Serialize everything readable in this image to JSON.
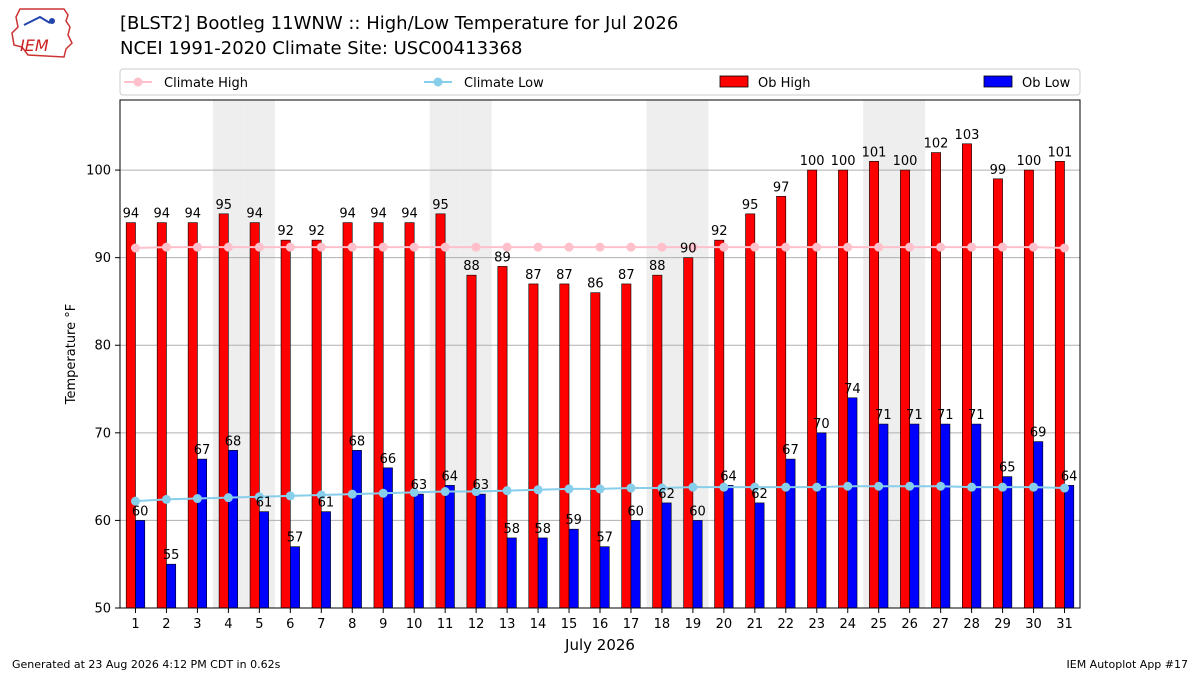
{
  "header": {
    "title_line1": "[BLST2] Bootleg 11WNW :: High/Low Temperature for Jul 2026",
    "title_line2": "NCEI 1991-2020 Climate Site: USC00413368",
    "logo_text": "IEM"
  },
  "footer": {
    "generated": "Generated at 23 Aug 2026 4:12 PM CDT in 0.62s",
    "app": "IEM Autoplot App #17"
  },
  "colors": {
    "ob_high": "#ff0000",
    "ob_low": "#0000ff",
    "climate_high": "#ffc0cb",
    "climate_low": "#87ceeb",
    "weekend_shade": "#eeeeee",
    "grid": "#b0b0b0"
  },
  "chart_data": {
    "type": "bar",
    "xlabel": "July 2026",
    "ylabel": "Temperature °F",
    "ylim": [
      50,
      108
    ],
    "yticks": [
      50,
      60,
      70,
      80,
      90,
      100
    ],
    "grid": "horizontal",
    "legend_position": "top",
    "categories": [
      "1",
      "2",
      "3",
      "4",
      "5",
      "6",
      "7",
      "8",
      "9",
      "10",
      "11",
      "12",
      "13",
      "14",
      "15",
      "16",
      "17",
      "18",
      "19",
      "20",
      "21",
      "22",
      "23",
      "24",
      "25",
      "26",
      "27",
      "28",
      "29",
      "30",
      "31"
    ],
    "shaded_days": [
      4,
      5,
      11,
      12,
      18,
      19,
      25,
      26
    ],
    "series": [
      {
        "name": "Climate High",
        "kind": "line",
        "values": [
          91.1,
          91.2,
          91.2,
          91.2,
          91.2,
          91.2,
          91.2,
          91.2,
          91.2,
          91.2,
          91.2,
          91.2,
          91.2,
          91.2,
          91.2,
          91.2,
          91.2,
          91.2,
          91.2,
          91.2,
          91.2,
          91.2,
          91.2,
          91.2,
          91.2,
          91.2,
          91.2,
          91.2,
          91.2,
          91.2,
          91.1
        ]
      },
      {
        "name": "Climate Low",
        "kind": "line",
        "values": [
          62.2,
          62.4,
          62.5,
          62.6,
          62.7,
          62.8,
          62.9,
          63.0,
          63.1,
          63.2,
          63.3,
          63.3,
          63.4,
          63.5,
          63.6,
          63.6,
          63.7,
          63.7,
          63.8,
          63.8,
          63.8,
          63.8,
          63.8,
          63.9,
          63.9,
          63.9,
          63.9,
          63.8,
          63.8,
          63.8,
          63.7
        ]
      },
      {
        "name": "Ob High",
        "kind": "bar",
        "values": [
          94,
          94,
          94,
          95,
          94,
          92,
          92,
          94,
          94,
          94,
          95,
          88,
          89,
          87,
          87,
          86,
          87,
          88,
          90,
          92,
          95,
          97,
          100,
          100,
          101,
          100,
          102,
          103,
          99,
          100,
          101
        ]
      },
      {
        "name": "Ob Low",
        "kind": "bar",
        "values": [
          60,
          55,
          67,
          68,
          61,
          57,
          61,
          68,
          66,
          63,
          64,
          63,
          58,
          58,
          59,
          57,
          60,
          62,
          60,
          64,
          62,
          67,
          70,
          74,
          71,
          71,
          71,
          71,
          65,
          69,
          64
        ]
      }
    ]
  }
}
